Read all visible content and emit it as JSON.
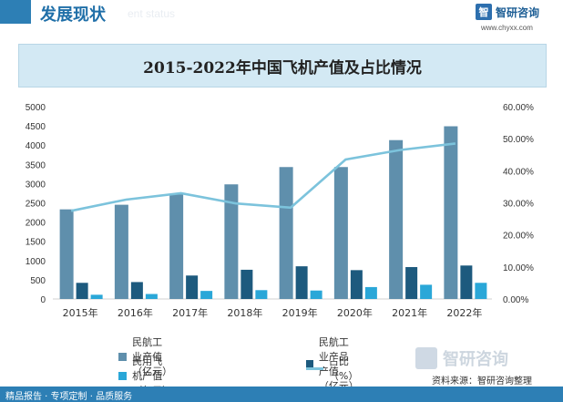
{
  "header": {
    "title": "发展现状",
    "ghost_text": "ent status"
  },
  "brand": {
    "name": "智研咨询",
    "url": "www.chyxx.com",
    "mark": "智"
  },
  "chart_title": "2015-2022年中国飞机产值及占比情况",
  "chart_data": {
    "type": "bar",
    "title": "2015-2022年中国飞机产值及占比情况",
    "categories": [
      "2015年",
      "2016年",
      "2017年",
      "2018年",
      "2019年",
      "2020年",
      "2021年",
      "2022年"
    ],
    "ylim_left": [
      0,
      5000
    ],
    "ylim_right": [
      0,
      60
    ],
    "left_ticks": [
      "0",
      "500",
      "1000",
      "1500",
      "2000",
      "2500",
      "3000",
      "3500",
      "4000",
      "4500",
      "5000"
    ],
    "right_ticks": [
      "0.00%",
      "10.00%",
      "20.00%",
      "30.00%",
      "40.00%",
      "50.00%",
      "60.00%"
    ],
    "series": [
      {
        "name": "民航工业产值（亿元）",
        "type": "bar",
        "axis": "left",
        "color": "#5f8fac",
        "values": [
          2330,
          2450,
          2720,
          2980,
          3430,
          3430,
          4130,
          4490
        ]
      },
      {
        "name": "民航工业产品产值（亿元）",
        "type": "bar",
        "axis": "left",
        "color": "#1d5a7e",
        "values": [
          420,
          440,
          610,
          760,
          850,
          750,
          830,
          870
        ]
      },
      {
        "name": "民用飞机产值（亿元）",
        "type": "bar",
        "axis": "left",
        "color": "#2aa7d8",
        "values": [
          110,
          130,
          210,
          230,
          220,
          310,
          370,
          420
        ]
      },
      {
        "name": "占比（%）",
        "type": "line",
        "axis": "right",
        "color": "#7cc3dc",
        "values": [
          27.5,
          31.0,
          33.0,
          29.8,
          28.5,
          43.5,
          46.5,
          48.5
        ]
      }
    ]
  },
  "source_text": "资料来源：智研咨询整理",
  "footer_text": "精品报告 · 专项定制 · 品质服务"
}
